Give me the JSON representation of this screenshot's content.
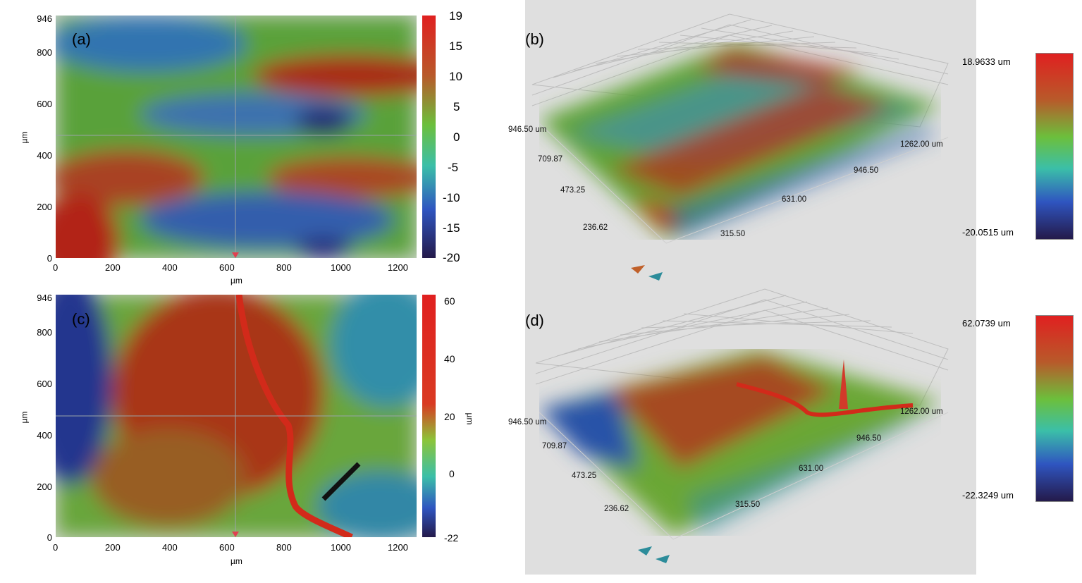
{
  "panels": {
    "a": {
      "label": "(a)",
      "yticks": [
        "946",
        "800",
        "600",
        "400",
        "200",
        "0"
      ],
      "xticks": [
        "0",
        "200",
        "400",
        "600",
        "800",
        "1000",
        "1200"
      ],
      "xlabel": "µm",
      "ylabel": "µm",
      "colorbar_ticks": [
        "19",
        "15",
        "10",
        "5",
        "0",
        "-5",
        "-10",
        "-15",
        "-20"
      ]
    },
    "b": {
      "label": "(b)",
      "cb_max": "18.9633 um",
      "cb_min": "-20.0515 um",
      "y_axis": [
        "946.50 um",
        "709.87",
        "473.25",
        "236.62"
      ],
      "x_axis": [
        "315.50",
        "631.00",
        "946.50",
        "1262.00 um"
      ]
    },
    "c": {
      "label": "(c)",
      "yticks": [
        "946",
        "800",
        "600",
        "400",
        "200",
        "0"
      ],
      "xticks": [
        "0",
        "200",
        "400",
        "600",
        "800",
        "1000",
        "1200"
      ],
      "xlabel": "µm",
      "ylabel": "µm",
      "colorbar_ticks": [
        "60",
        "40",
        "20",
        "0",
        "-22"
      ],
      "colorbar_unit": "µm"
    },
    "d": {
      "label": "(d)",
      "cb_max": "62.0739 um",
      "cb_min": "-22.3249 um",
      "y_axis": [
        "946.50 um",
        "709.87",
        "473.25",
        "236.62"
      ],
      "x_axis": [
        "315.50",
        "631.00",
        "946.50",
        "1262.00 um"
      ]
    }
  },
  "colors": {
    "high": "#e0281e",
    "mid": "#5fc23a",
    "low": "#1f3fb8",
    "darkest": "#241a4a"
  }
}
